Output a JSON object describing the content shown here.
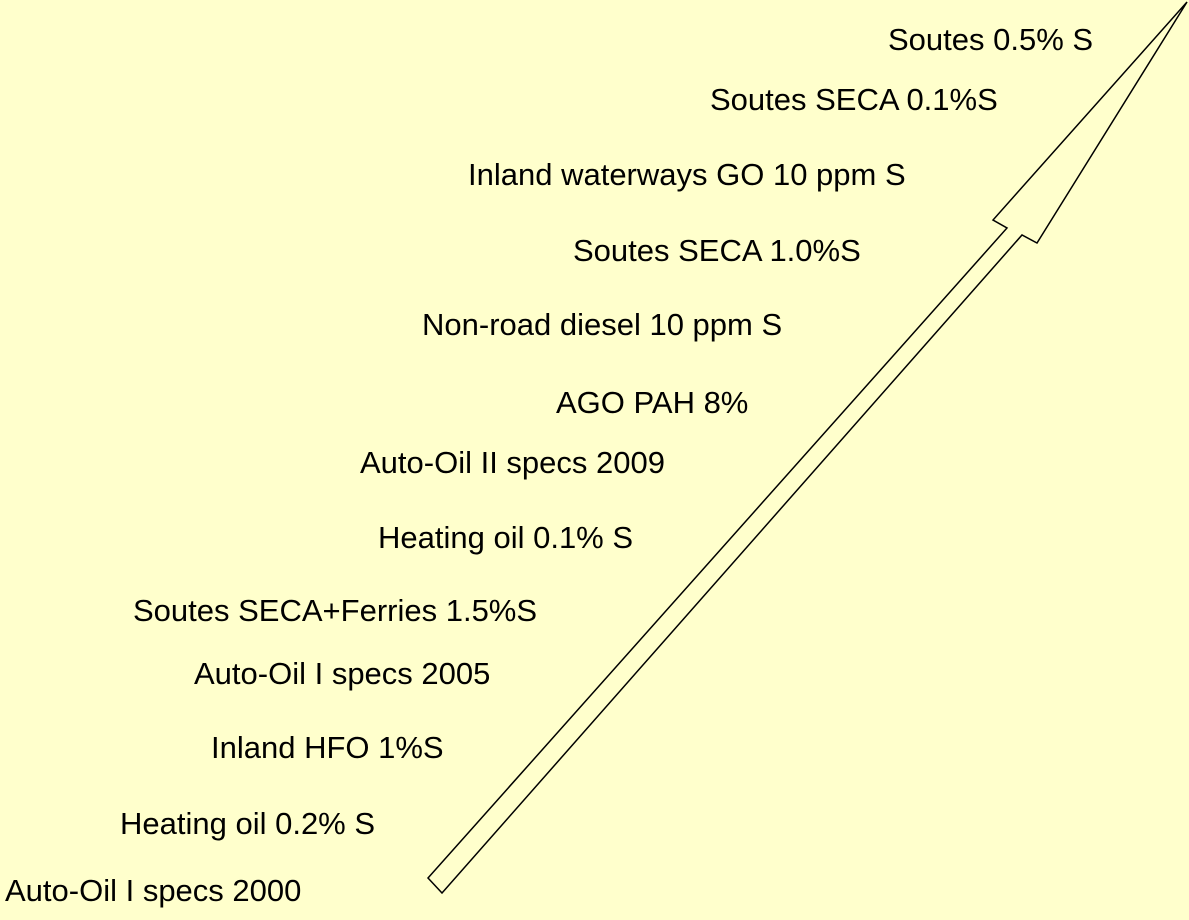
{
  "labels": [
    "Soutes 0.5% S",
    "Soutes SECA 0.1%S",
    "Inland waterways GO 10 ppm S",
    "Soutes SECA 1.0%S",
    "Non-road diesel 10 ppm S",
    "AGO PAH 8%",
    "Auto-Oil II specs 2009",
    "Heating oil 0.1% S",
    "Soutes SECA+Ferries 1.5%S",
    "Auto-Oil I specs 2005",
    "Inland HFO 1%S",
    "Heating oil 0.2% S",
    "Auto-Oil I specs 2000"
  ]
}
